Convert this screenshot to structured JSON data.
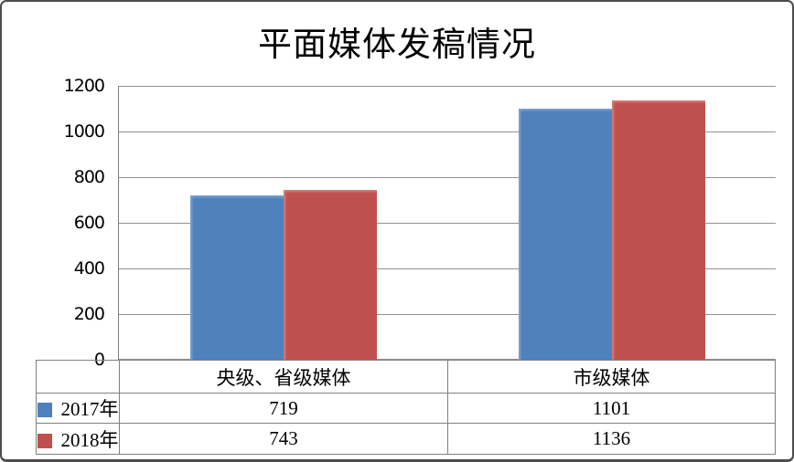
{
  "window": {
    "background": "#ffffff",
    "border_color": "#4d4d4d"
  },
  "colors": {
    "gridline": "#919191",
    "axis_line": "#7f7f7f",
    "table_border": "#808080",
    "text": "#000000"
  },
  "chart_data": {
    "type": "bar",
    "title": "平面媒体发稿情况",
    "categories": [
      "央级、省级媒体",
      "市级媒体"
    ],
    "series": [
      {
        "name": "2017年",
        "color": "#4F81BD",
        "values": [
          719,
          1101
        ]
      },
      {
        "name": "2018年",
        "color": "#C0504D",
        "values": [
          743,
          1136
        ]
      }
    ],
    "xlabel": "",
    "ylabel": "",
    "ylim": [
      0,
      1200
    ],
    "yticks": [
      0,
      200,
      400,
      600,
      800,
      1000,
      1200
    ],
    "grid": "horizontal-major",
    "legend_position": "bottom-data-table",
    "data_table_shown": true
  }
}
